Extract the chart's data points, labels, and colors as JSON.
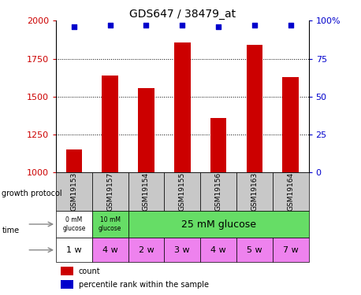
{
  "title": "GDS647 / 38479_at",
  "samples": [
    "GSM19153",
    "GSM19157",
    "GSM19154",
    "GSM19155",
    "GSM19156",
    "GSM19163",
    "GSM19164"
  ],
  "counts": [
    1155,
    1640,
    1555,
    1855,
    1360,
    1840,
    1630
  ],
  "percentiles": [
    96,
    97,
    97,
    97,
    96,
    97,
    97
  ],
  "ylim_left": [
    1000,
    2000
  ],
  "ylim_right": [
    0,
    100
  ],
  "yticks_left": [
    1000,
    1250,
    1500,
    1750,
    2000
  ],
  "yticks_right": [
    0,
    25,
    50,
    75,
    100
  ],
  "bar_color": "#cc0000",
  "dot_color": "#0000cc",
  "time_labels": [
    "1 w",
    "4 w",
    "2 w",
    "3 w",
    "4 w",
    "5 w",
    "7 w"
  ],
  "time_colors": [
    "#ffffff",
    "#ee82ee",
    "#ee82ee",
    "#ee82ee",
    "#ee82ee",
    "#ee82ee",
    "#ee82ee"
  ],
  "sample_bg_color": "#c8c8c8",
  "legend_count_color": "#cc0000",
  "legend_pct_color": "#0000cc",
  "grid_lines": [
    1250,
    1500,
    1750
  ],
  "fig_width": 4.58,
  "fig_height": 3.75
}
